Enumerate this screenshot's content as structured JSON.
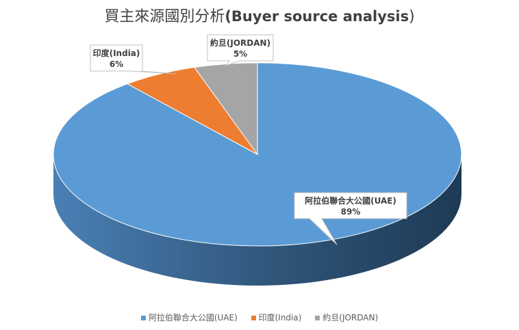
{
  "chart_data": {
    "type": "pie",
    "title_cjk": "買主來源國別分析",
    "title_en": "(Buyer source analysis",
    "title_close": ")",
    "categories": [
      "阿拉伯聯合大公國(UAE)",
      "印度(India)",
      "約旦(JORDAN)"
    ],
    "values": [
      89,
      6,
      5
    ],
    "value_labels": [
      "89%",
      "6%",
      "5%"
    ],
    "colors": [
      "#5B9BD5",
      "#ED7D31",
      "#A5A5A5"
    ],
    "legend_position": "bottom",
    "style": "3d"
  }
}
